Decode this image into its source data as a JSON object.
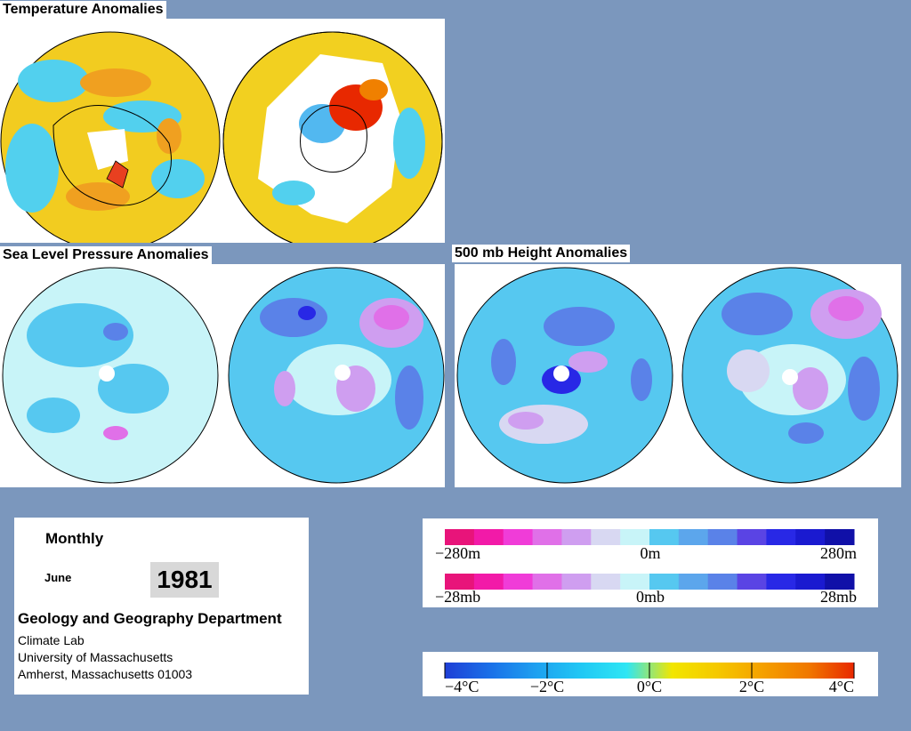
{
  "panels": {
    "temperature": {
      "title": "Temperature Anomalies"
    },
    "slp": {
      "title": "Sea Level Pressure Anomalies"
    },
    "height": {
      "title": "500 mb Height Anomalies"
    }
  },
  "info": {
    "period": "Monthly",
    "month": "June",
    "year": "1981",
    "department": "Geology and Geography Department",
    "lab": "Climate Lab",
    "university": "University of Massachusetts",
    "address": "Amherst, Massachusetts 01003"
  },
  "legends": {
    "height": {
      "left": "−280m",
      "mid": "0m",
      "right": "280m"
    },
    "pressure": {
      "left": "−28mb",
      "mid": "0mb",
      "right": "28mb"
    },
    "temperature": {
      "labels": [
        "−4°C",
        "−2°C",
        "0°C",
        "2°C",
        "4°C"
      ]
    }
  },
  "colors": {
    "page_bg": "#7b97bd",
    "anomaly_scale": [
      "#e8147a",
      "#f21aa8",
      "#f03cd8",
      "#e070e8",
      "#cf9ef0",
      "#d8d8f2",
      "#c8f4f8",
      "#56c8f0",
      "#5ca6ec",
      "#5a82e8",
      "#5a44e4",
      "#2828e6",
      "#1a1ad0",
      "#1010a8"
    ],
    "temperature_scale": [
      "#1f3fd6",
      "#1a70e8",
      "#1ea0f0",
      "#20c8f4",
      "#2ee6f4",
      "#f2e600",
      "#f5c800",
      "#f5a000",
      "#f07800",
      "#e82800"
    ],
    "land_outline": "#000000"
  }
}
